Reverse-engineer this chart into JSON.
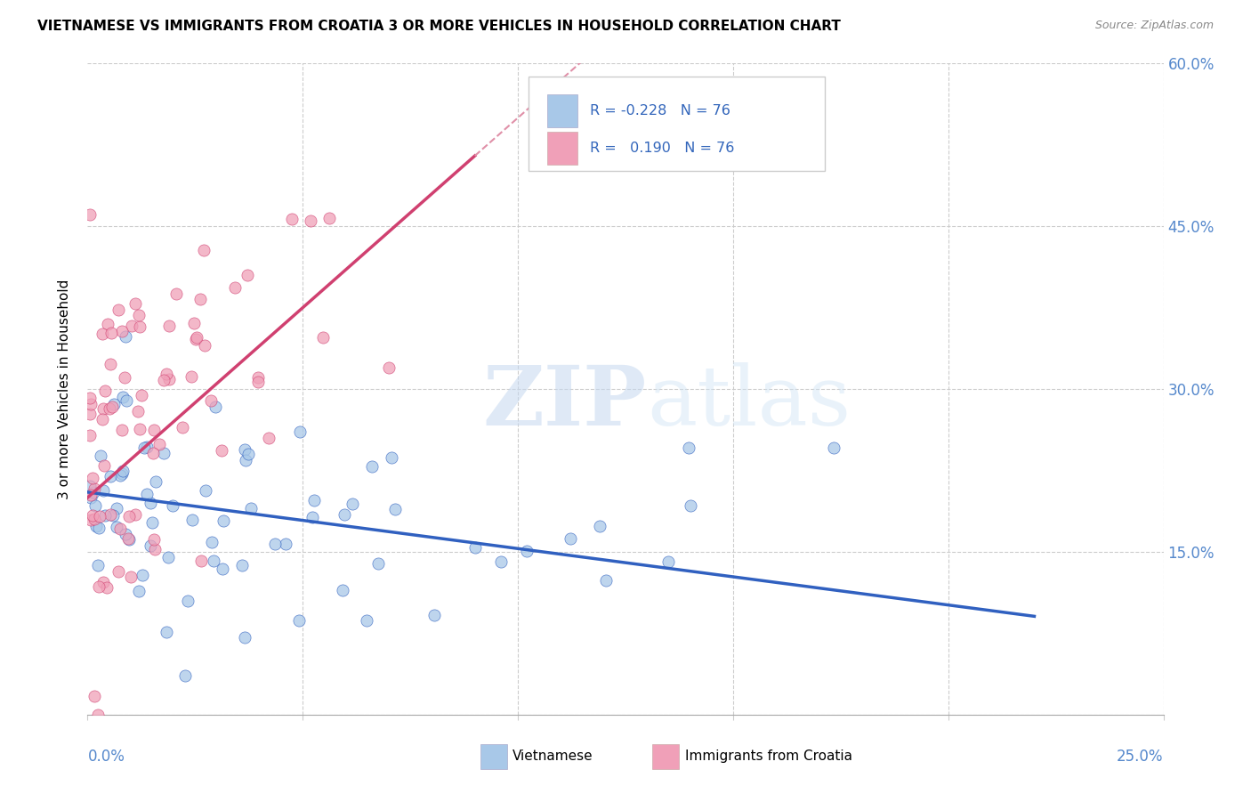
{
  "title": "VIETNAMESE VS IMMIGRANTS FROM CROATIA 3 OR MORE VEHICLES IN HOUSEHOLD CORRELATION CHART",
  "source": "Source: ZipAtlas.com",
  "ylabel": "3 or more Vehicles in Household",
  "xlim": [
    0.0,
    25.0
  ],
  "ylim": [
    0.0,
    60.0
  ],
  "yticks": [
    0.0,
    15.0,
    30.0,
    45.0,
    60.0
  ],
  "ytick_labels": [
    "",
    "15.0%",
    "30.0%",
    "45.0%",
    "60.0%"
  ],
  "color_blue": "#a8c8e8",
  "color_pink": "#f0a0b8",
  "color_blue_line": "#3060c0",
  "color_pink_line": "#d04070",
  "color_pink_dash": "#e090a8",
  "watermark_zip": "ZIP",
  "watermark_atlas": "atlas",
  "seed_viet": 42,
  "seed_croatia": 99,
  "n": 76,
  "viet_slope": -0.52,
  "viet_intercept": 20.5,
  "croatia_slope": 3.5,
  "croatia_intercept": 20.0
}
